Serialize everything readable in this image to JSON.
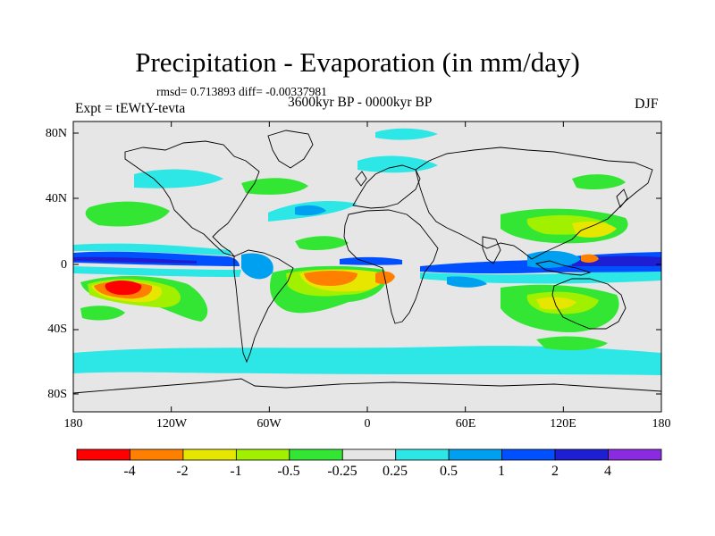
{
  "title": "Precipitation - Evaporation (in mm/day)",
  "stats": "rmsd= 0.713893 diff= -0.00337981",
  "subtitle": "3600kyr BP - 0000kyr BP",
  "experiment": "Expt = tEWtY-tevta",
  "season": "DJF",
  "lat_ticks": [
    "80N",
    "40N",
    "0",
    "40S",
    "80S"
  ],
  "lon_ticks": [
    "180",
    "120W",
    "60W",
    "0",
    "60E",
    "120E",
    "180"
  ],
  "colorbar": {
    "labels": [
      "-4",
      "-2",
      "-1",
      "-0.5",
      "-0.25",
      "0.25",
      "0.5",
      "1",
      "2",
      "4"
    ],
    "colors": [
      "#ff0000",
      "#ff8000",
      "#e6e600",
      "#a0f000",
      "#33e633",
      "#e6e6e6",
      "#2de6e6",
      "#00a0f0",
      "#0050ff",
      "#1e1ed2",
      "#8a2be2"
    ]
  },
  "colors": {
    "background": "#e6e6e6",
    "coast": "#000000"
  }
}
